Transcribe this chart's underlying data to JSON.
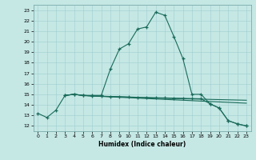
{
  "xlabel": "Humidex (Indice chaleur)",
  "bg_color": "#c5e8e5",
  "line_color": "#1a6b5a",
  "xlim": [
    -0.5,
    23.5
  ],
  "ylim": [
    11.5,
    23.5
  ],
  "yticks": [
    12,
    13,
    14,
    15,
    16,
    17,
    18,
    19,
    20,
    21,
    22,
    23
  ],
  "xticks": [
    0,
    1,
    2,
    3,
    4,
    5,
    6,
    7,
    8,
    9,
    10,
    11,
    12,
    13,
    14,
    15,
    16,
    17,
    18,
    19,
    20,
    21,
    22,
    23
  ],
  "line1_x": [
    0,
    1,
    2,
    3,
    4,
    5,
    6,
    7,
    8,
    9,
    10,
    11,
    12,
    13,
    14,
    15,
    16,
    17,
    18,
    19,
    20,
    21,
    22,
    23
  ],
  "line1_y": [
    13.2,
    12.8,
    13.5,
    14.9,
    15.0,
    14.9,
    14.9,
    14.9,
    17.4,
    19.3,
    19.8,
    21.2,
    21.4,
    22.8,
    22.5,
    20.5,
    18.4,
    15.0,
    15.0,
    14.1,
    13.7,
    12.5,
    12.2,
    12.0
  ],
  "line2_x": [
    3,
    4,
    5,
    6,
    7,
    8,
    9,
    10,
    11,
    12,
    13,
    14,
    15,
    16,
    17,
    18,
    19,
    20,
    21,
    22,
    23
  ],
  "line2_y": [
    14.9,
    15.0,
    14.9,
    14.85,
    14.82,
    14.8,
    14.78,
    14.75,
    14.72,
    14.7,
    14.68,
    14.66,
    14.64,
    14.62,
    14.6,
    14.58,
    14.1,
    13.7,
    12.5,
    12.2,
    12.0
  ],
  "line3_x": [
    3,
    4,
    5,
    6,
    7,
    8,
    9,
    10,
    11,
    12,
    13,
    14,
    15,
    16,
    17,
    18,
    19,
    20,
    21,
    22,
    23
  ],
  "line3_y": [
    14.9,
    15.0,
    14.9,
    14.85,
    14.82,
    14.79,
    14.76,
    14.73,
    14.7,
    14.67,
    14.64,
    14.62,
    14.6,
    14.58,
    14.56,
    14.54,
    14.52,
    14.5,
    14.48,
    14.46,
    14.44
  ],
  "line4_x": [
    3,
    4,
    5,
    6,
    7,
    8,
    9,
    10,
    11,
    12,
    13,
    14,
    15,
    16,
    17,
    18,
    19,
    20,
    21,
    22,
    23
  ],
  "line4_y": [
    14.9,
    15.0,
    14.88,
    14.84,
    14.8,
    14.76,
    14.72,
    14.68,
    14.64,
    14.6,
    14.56,
    14.52,
    14.48,
    14.44,
    14.4,
    14.36,
    14.32,
    14.28,
    14.24,
    14.2,
    14.16
  ]
}
